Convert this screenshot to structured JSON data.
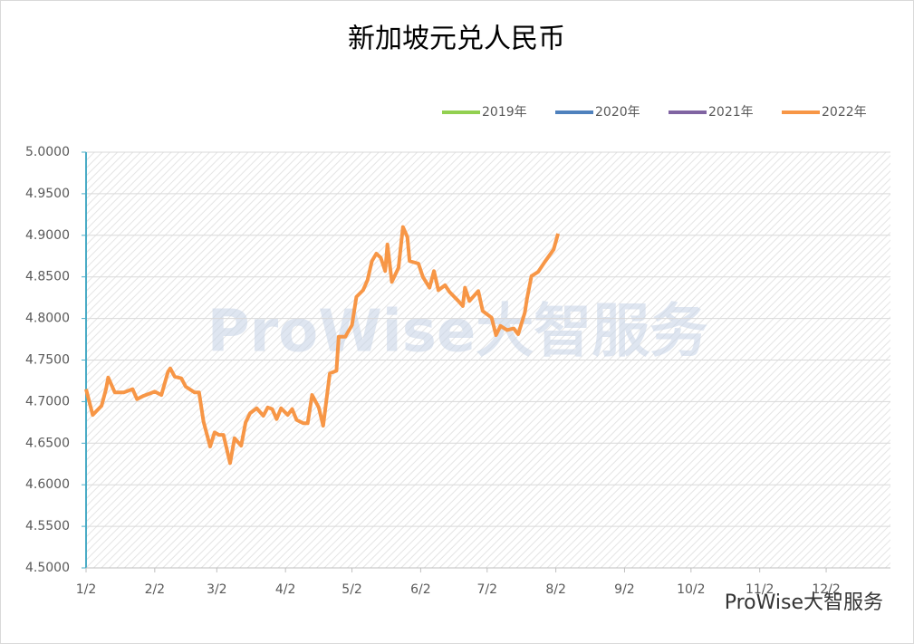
{
  "chart_data": {
    "type": "line",
    "title": "新加坡元兑人民币",
    "watermark": "ProWise大智服务",
    "footer": "ProWise大智服务",
    "x": [
      "1/2",
      "1/5",
      "1/9",
      "1/11",
      "1/12",
      "1/15",
      "1/19",
      "1/23",
      "1/25",
      "1/28",
      "2/2",
      "2/5",
      "2/8",
      "2/9",
      "2/11",
      "2/14",
      "2/16",
      "2/20",
      "2/22",
      "2/24",
      "2/27",
      "3/1",
      "3/3",
      "3/5",
      "3/8",
      "3/10",
      "3/13",
      "3/15",
      "3/17",
      "3/20",
      "3/23",
      "3/25",
      "3/27",
      "3/29",
      "3/31",
      "4/3",
      "4/5",
      "4/7",
      "4/10",
      "4/12",
      "4/14",
      "4/17",
      "4/19",
      "4/22",
      "4/25",
      "4/26",
      "4/29",
      "5/2",
      "5/4",
      "5/7",
      "5/9",
      "5/11",
      "5/13",
      "5/15",
      "5/17",
      "5/18",
      "5/20",
      "5/23",
      "5/25",
      "5/27",
      "5/28",
      "6/1",
      "6/3",
      "6/6",
      "6/8",
      "6/10",
      "6/13",
      "6/15",
      "6/19",
      "6/21",
      "6/22",
      "6/24",
      "6/28",
      "6/30",
      "7/4",
      "7/6",
      "7/8",
      "7/11",
      "7/14",
      "7/16",
      "7/19",
      "7/20",
      "7/22",
      "7/25",
      "7/28",
      "8/1",
      "8/3"
    ],
    "series": [
      {
        "name": "2019年",
        "color": "#92d050",
        "values": [
          null,
          null,
          null,
          null,
          null,
          null,
          null,
          null,
          null,
          null,
          null,
          null,
          null,
          null,
          null,
          null,
          null,
          null,
          null,
          null,
          null,
          null,
          null,
          null,
          null,
          null,
          null,
          null,
          null,
          null,
          null,
          null,
          null,
          null,
          null,
          null,
          null,
          null,
          null,
          null,
          null,
          null,
          null,
          null,
          null,
          null,
          null,
          null,
          null,
          null,
          null,
          null,
          null,
          null,
          null,
          null,
          null,
          null,
          null,
          null,
          null,
          null,
          null,
          null,
          null,
          null,
          null,
          null,
          null,
          null,
          null,
          null,
          null,
          null,
          null,
          null,
          null,
          null,
          null,
          null,
          null,
          null,
          null,
          null,
          null,
          null,
          null
        ]
      },
      {
        "name": "2020年",
        "color": "#4f81bd",
        "values": [
          null,
          null,
          null,
          null,
          null,
          null,
          null,
          null,
          null,
          null,
          null,
          null,
          null,
          null,
          null,
          null,
          null,
          null,
          null,
          null,
          null,
          null,
          null,
          null,
          null,
          null,
          null,
          null,
          null,
          null,
          null,
          null,
          null,
          null,
          null,
          null,
          null,
          null,
          null,
          null,
          null,
          null,
          null,
          null,
          null,
          null,
          null,
          null,
          null,
          null,
          null,
          null,
          null,
          null,
          null,
          null,
          null,
          null,
          null,
          null,
          null,
          null,
          null,
          null,
          null,
          null,
          null,
          null,
          null,
          null,
          null,
          null,
          null,
          null,
          null,
          null,
          null,
          null,
          null,
          null,
          null,
          null,
          null,
          null,
          null,
          null,
          null
        ]
      },
      {
        "name": "2021年",
        "color": "#8064a2",
        "values": [
          null,
          null,
          null,
          null,
          null,
          null,
          null,
          null,
          null,
          null,
          null,
          null,
          null,
          null,
          null,
          null,
          null,
          null,
          null,
          null,
          null,
          null,
          null,
          null,
          null,
          null,
          null,
          null,
          null,
          null,
          null,
          null,
          null,
          null,
          null,
          null,
          null,
          null,
          null,
          null,
          null,
          null,
          null,
          null,
          null,
          null,
          null,
          null,
          null,
          null,
          null,
          null,
          null,
          null,
          null,
          null,
          null,
          null,
          null,
          null,
          null,
          null,
          null,
          null,
          null,
          null,
          null,
          null,
          null,
          null,
          null,
          null,
          null,
          null,
          null,
          null,
          null,
          null,
          null,
          null,
          null,
          null,
          null,
          null,
          null,
          null,
          null
        ]
      },
      {
        "name": "2022年",
        "color": "#f79646",
        "values": [
          4.715,
          4.684,
          4.695,
          4.715,
          4.729,
          4.711,
          4.711,
          4.715,
          4.703,
          4.707,
          4.712,
          4.708,
          4.736,
          4.74,
          4.73,
          4.728,
          4.718,
          4.711,
          4.711,
          4.676,
          4.646,
          4.663,
          4.66,
          4.66,
          4.626,
          4.656,
          4.647,
          4.675,
          4.686,
          4.692,
          4.683,
          4.693,
          4.691,
          4.679,
          4.692,
          4.684,
          4.691,
          4.678,
          4.674,
          4.674,
          4.708,
          4.693,
          4.671,
          4.734,
          4.737,
          4.778,
          4.778,
          4.792,
          4.826,
          4.834,
          4.846,
          4.869,
          4.878,
          4.873,
          4.857,
          4.889,
          4.844,
          4.861,
          4.91,
          4.898,
          4.869,
          4.866,
          4.85,
          4.837,
          4.857,
          4.834,
          4.84,
          4.832,
          4.821,
          4.815,
          4.837,
          4.821,
          4.833,
          4.809,
          4.801,
          4.78,
          4.791,
          4.786,
          4.788,
          4.781,
          4.807,
          4.824,
          4.851,
          4.856,
          4.868,
          4.883,
          4.902
        ]
      }
    ],
    "xlim": [
      "1/2",
      "12/31"
    ],
    "xticks": [
      "1/2",
      "2/2",
      "3/2",
      "4/2",
      "5/2",
      "6/2",
      "7/2",
      "8/2",
      "9/2",
      "10/2",
      "11/2",
      "12/2"
    ],
    "ylim": [
      4.5,
      5.0
    ],
    "yticks": [
      {
        "value": 4.5,
        "label": "4.5000"
      },
      {
        "value": 4.55,
        "label": "4.5500"
      },
      {
        "value": 4.6,
        "label": "4.6000"
      },
      {
        "value": 4.65,
        "label": "4.6500"
      },
      {
        "value": 4.7,
        "label": "4.7000"
      },
      {
        "value": 4.75,
        "label": "4.7500"
      },
      {
        "value": 4.8,
        "label": "4.8000"
      },
      {
        "value": 4.85,
        "label": "4.8500"
      },
      {
        "value": 4.9,
        "label": "4.9000"
      },
      {
        "value": 4.95,
        "label": "4.9500"
      },
      {
        "value": 5.0,
        "label": "5.0000"
      }
    ],
    "grid": true,
    "legend": "top-right"
  }
}
